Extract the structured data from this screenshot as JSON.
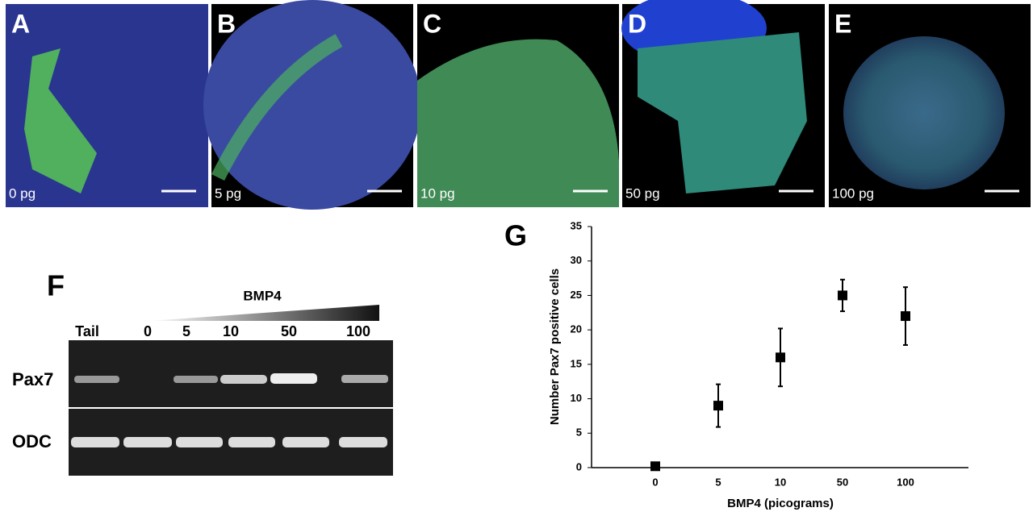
{
  "panels": [
    {
      "letter": "A",
      "label": "0 pg"
    },
    {
      "letter": "B",
      "label": "5 pg"
    },
    {
      "letter": "C",
      "label": "10 pg"
    },
    {
      "letter": "D",
      "label": "50 pg"
    },
    {
      "letter": "E",
      "label": "100 pg"
    }
  ],
  "gel": {
    "letter": "F",
    "title": "BMP4",
    "lanes": [
      "Tail",
      "0",
      "5",
      "10",
      "50",
      "100"
    ],
    "rows": [
      "Pax7",
      "ODC"
    ]
  },
  "chart_data": {
    "type": "errorbar",
    "letter": "G",
    "x_label": "BMP4 (picograms)",
    "y_label": "Number Pax7 positive cells",
    "categories": [
      "0",
      "5",
      "10",
      "50",
      "100"
    ],
    "values": [
      0.2,
      9,
      16,
      25,
      22
    ],
    "errors": [
      null,
      3.1,
      4.2,
      2.3,
      4.2
    ],
    "color": "#000000",
    "ylim": [
      0,
      35
    ],
    "yticks": [
      0,
      5,
      10,
      15,
      20,
      25,
      30,
      35
    ]
  }
}
